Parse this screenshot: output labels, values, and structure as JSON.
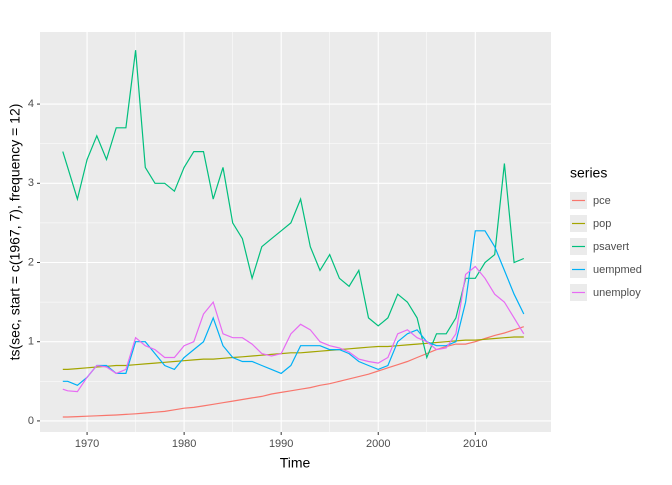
{
  "chart_data": {
    "type": "line",
    "x_label": "Time",
    "y_label": "ts(sec, start = c(1967, 7), frequency = 12)",
    "legend_title": "series",
    "legend_position": "right",
    "grid": true,
    "xlim": [
      1965.15,
      2017.8
    ],
    "ylim": [
      -0.14,
      4.91
    ],
    "xticks": [
      1970,
      1980,
      1990,
      2000,
      2010
    ],
    "yticks": [
      0,
      1,
      2,
      3,
      4
    ],
    "x": [
      1967.5,
      1968,
      1969,
      1970,
      1971,
      1972,
      1973,
      1974,
      1975,
      1976,
      1977,
      1978,
      1979,
      1980,
      1981,
      1982,
      1983,
      1984,
      1985,
      1986,
      1987,
      1988,
      1989,
      1990,
      1991,
      1992,
      1993,
      1994,
      1995,
      1996,
      1997,
      1998,
      1999,
      2000,
      2001,
      2002,
      2003,
      2004,
      2005,
      2006,
      2007,
      2008,
      2009,
      2010,
      2011,
      2012,
      2013,
      2014,
      2015
    ],
    "series": [
      {
        "name": "pce",
        "color": "#F8766D",
        "values": [
          0.05,
          0.05,
          0.055,
          0.06,
          0.065,
          0.07,
          0.075,
          0.082,
          0.09,
          0.1,
          0.11,
          0.12,
          0.14,
          0.16,
          0.17,
          0.19,
          0.21,
          0.23,
          0.25,
          0.27,
          0.29,
          0.31,
          0.34,
          0.36,
          0.38,
          0.4,
          0.42,
          0.45,
          0.47,
          0.5,
          0.53,
          0.56,
          0.59,
          0.63,
          0.67,
          0.71,
          0.75,
          0.8,
          0.85,
          0.9,
          0.94,
          0.97,
          0.97,
          1.0,
          1.04,
          1.08,
          1.11,
          1.15,
          1.19
        ]
      },
      {
        "name": "pop",
        "color": "#A3A500",
        "values": [
          0.65,
          0.65,
          0.66,
          0.67,
          0.68,
          0.69,
          0.7,
          0.7,
          0.71,
          0.72,
          0.73,
          0.74,
          0.75,
          0.76,
          0.77,
          0.78,
          0.78,
          0.79,
          0.8,
          0.81,
          0.82,
          0.83,
          0.84,
          0.85,
          0.86,
          0.86,
          0.87,
          0.88,
          0.89,
          0.9,
          0.91,
          0.92,
          0.93,
          0.94,
          0.94,
          0.95,
          0.96,
          0.97,
          0.98,
          0.99,
          1.0,
          1.01,
          1.02,
          1.02,
          1.03,
          1.04,
          1.05,
          1.06,
          1.06
        ]
      },
      {
        "name": "psavert",
        "color": "#00BF7D",
        "values": [
          3.4,
          3.2,
          2.8,
          3.3,
          3.6,
          3.3,
          3.7,
          3.7,
          4.68,
          3.2,
          3.0,
          3.0,
          2.9,
          3.2,
          3.4,
          3.4,
          2.8,
          3.2,
          2.5,
          2.3,
          1.8,
          2.2,
          2.3,
          2.4,
          2.5,
          2.8,
          2.2,
          1.9,
          2.1,
          1.8,
          1.7,
          1.9,
          1.3,
          1.2,
          1.3,
          1.6,
          1.5,
          1.3,
          0.8,
          1.1,
          1.1,
          1.3,
          1.8,
          1.8,
          2.0,
          2.1,
          3.25,
          2.0,
          2.05
        ]
      },
      {
        "name": "uempmed",
        "color": "#00B0F6",
        "values": [
          0.5,
          0.5,
          0.45,
          0.55,
          0.7,
          0.7,
          0.6,
          0.6,
          1.0,
          1.0,
          0.85,
          0.7,
          0.65,
          0.8,
          0.9,
          1.0,
          1.3,
          0.95,
          0.8,
          0.75,
          0.75,
          0.7,
          0.65,
          0.6,
          0.7,
          0.95,
          0.95,
          0.95,
          0.9,
          0.9,
          0.85,
          0.75,
          0.7,
          0.65,
          0.7,
          1.0,
          1.1,
          1.15,
          1.0,
          0.95,
          0.95,
          1.0,
          1.5,
          2.4,
          2.4,
          2.2,
          1.9,
          1.6,
          1.35
        ]
      },
      {
        "name": "unemploy",
        "color": "#E76BF3",
        "values": [
          0.4,
          0.38,
          0.37,
          0.55,
          0.7,
          0.68,
          0.6,
          0.65,
          1.05,
          0.95,
          0.9,
          0.8,
          0.8,
          0.95,
          1.0,
          1.35,
          1.5,
          1.1,
          1.05,
          1.05,
          0.97,
          0.85,
          0.82,
          0.85,
          1.1,
          1.22,
          1.15,
          1.0,
          0.95,
          0.92,
          0.87,
          0.78,
          0.75,
          0.73,
          0.8,
          1.1,
          1.15,
          1.05,
          1.0,
          0.9,
          0.92,
          1.1,
          1.85,
          1.95,
          1.8,
          1.6,
          1.5,
          1.3,
          1.1
        ]
      }
    ]
  }
}
